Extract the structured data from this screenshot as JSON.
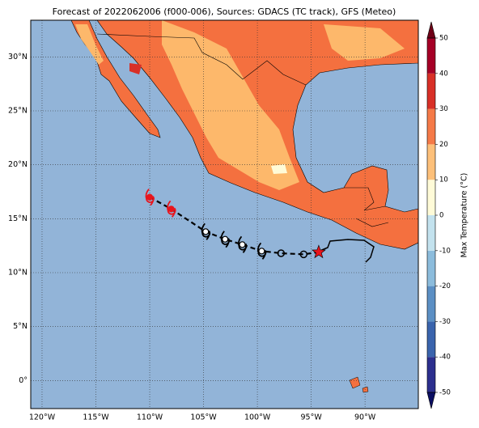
{
  "map": {
    "title": "Forecast of 2022062006 (f000-006), Sources: GDACS (TC track), GFS (Meteo)",
    "xlim": [
      -121.05,
      -85.05
    ],
    "ylim": [
      -2.6,
      33.4
    ],
    "xticks": [
      {
        "value": -120,
        "label": "120°W"
      },
      {
        "value": -115,
        "label": "115°W"
      },
      {
        "value": -110,
        "label": "110°W"
      },
      {
        "value": -105,
        "label": "105°W"
      },
      {
        "value": -100,
        "label": "100°W"
      },
      {
        "value": -95,
        "label": "95°W"
      },
      {
        "value": -90,
        "label": "90°W"
      }
    ],
    "yticks": [
      {
        "value": 0,
        "label": "0°"
      },
      {
        "value": 5,
        "label": "5°N"
      },
      {
        "value": 10,
        "label": "10°N"
      },
      {
        "value": 15,
        "label": "15°N"
      },
      {
        "value": 20,
        "label": "20°N"
      },
      {
        "value": 25,
        "label": "25°N"
      },
      {
        "value": 30,
        "label": "30°N"
      }
    ],
    "grid": true,
    "ocean_color": "#92b4d8",
    "track": [
      {
        "lon": -110.0,
        "lat": 17.0,
        "marker": "cyclone",
        "color": "#e8141c"
      },
      {
        "lon": -108.0,
        "lat": 15.9,
        "marker": "cyclone",
        "color": "#e8141c"
      },
      {
        "lon": -104.8,
        "lat": 13.8,
        "marker": "cyclone",
        "color": "#000000"
      },
      {
        "lon": -103.0,
        "lat": 13.1,
        "marker": "cyclone",
        "color": "#000000"
      },
      {
        "lon": -101.4,
        "lat": 12.6,
        "marker": "cyclone",
        "color": "#000000"
      },
      {
        "lon": -99.6,
        "lat": 12.0,
        "marker": "cyclone",
        "color": "#000000"
      },
      {
        "lon": -97.8,
        "lat": 11.8,
        "marker": "circle",
        "color": "#000000"
      },
      {
        "lon": -95.7,
        "lat": 11.7,
        "marker": "circle",
        "color": "#000000"
      },
      {
        "lon": -94.3,
        "lat": 11.9,
        "marker": "star",
        "color": "#e8141c"
      }
    ],
    "colorbar": {
      "label": "Max Temperature (°C)",
      "ticks": [
        -50,
        -40,
        -30,
        -20,
        -10,
        0,
        10,
        20,
        30,
        40,
        50
      ],
      "colors": [
        "#2c2f8e",
        "#3a64ad",
        "#5b8fc4",
        "#8cbcdc",
        "#c3e2ee",
        "#fffbd8",
        "#fdc07a",
        "#f57a48",
        "#d83027",
        "#a50026"
      ],
      "under_color": "#0b0f63",
      "over_color": "#6f0017"
    }
  }
}
